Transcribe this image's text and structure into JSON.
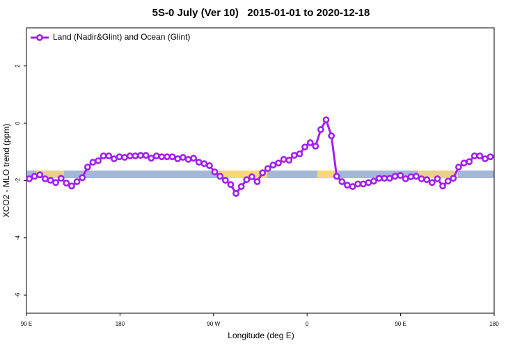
{
  "chart_data": {
    "type": "line",
    "title": "5S-0 July (Ver 10)   2015-01-01 to 2020-12-18",
    "x_label": "Longitude (deg E)",
    "y_label": "XCO2 - MLO trend (ppm)",
    "x": [
      92.7,
      97.8,
      102.9,
      108,
      113.1,
      118.2,
      123.3,
      128.4,
      133.5,
      138.6,
      143.7,
      148.8,
      153.9,
      159,
      164.1,
      169.2,
      174.3,
      179.4,
      184.5,
      189.6,
      194.7,
      199.8,
      204.9,
      210,
      215.1,
      220.2,
      225.3,
      230.4,
      235.5,
      240.6,
      245.7,
      250.8,
      255.9,
      261,
      266.1,
      271.2,
      276.3,
      281.4,
      286.5,
      291.6,
      296.7,
      301.8,
      306.9,
      312,
      317.1,
      322.2,
      327.3,
      332.4,
      337.5,
      342.6,
      347.7,
      352.8,
      357.9,
      363,
      368.1,
      373.2,
      378.3,
      383.4,
      388.5,
      393.6,
      398.7,
      403.8,
      408.9,
      414,
      419.1,
      424.2,
      429.3,
      434.4,
      439.5,
      444.6,
      449.7,
      454.8,
      459.9,
      465,
      470.1,
      475.2,
      480.3,
      485.4,
      490.5,
      495.6,
      500.7,
      505.8,
      510.9,
      516,
      521.1,
      526.2,
      531.3,
      536.4
    ],
    "series": [
      {
        "name": "Land (Nadir&Glint) and Ocean (Glint)",
        "color": "#a020f0",
        "values": [
          -1.94,
          -1.85,
          -1.8,
          -1.94,
          -1.99,
          -2.07,
          -1.92,
          -2.09,
          -2.19,
          -2.04,
          -1.9,
          -1.53,
          -1.36,
          -1.31,
          -1.14,
          -1.14,
          -1.24,
          -1.17,
          -1.19,
          -1.14,
          -1.14,
          -1.12,
          -1.12,
          -1.22,
          -1.14,
          -1.17,
          -1.17,
          -1.17,
          -1.24,
          -1.19,
          -1.26,
          -1.22,
          -1.36,
          -1.41,
          -1.48,
          -1.7,
          -1.85,
          -1.99,
          -2.14,
          -2.45,
          -2.21,
          -1.97,
          -1.87,
          -2.04,
          -1.73,
          -1.58,
          -1.46,
          -1.39,
          -1.26,
          -1.29,
          -1.12,
          -1.07,
          -0.83,
          -0.68,
          -0.8,
          -0.22,
          0.12,
          -0.44,
          -1.85,
          -2.04,
          -2.16,
          -2.21,
          -2.12,
          -2.12,
          -2.07,
          -2.02,
          -1.92,
          -1.92,
          -1.92,
          -1.85,
          -1.82,
          -1.94,
          -1.87,
          -1.85,
          -1.94,
          -1.97,
          -2.07,
          -1.94,
          -2.19,
          -2.02,
          -1.92,
          -1.53,
          -1.39,
          -1.34,
          -1.14,
          -1.14,
          -1.24,
          -1.17
        ]
      }
    ],
    "xlim": [
      90,
      540
    ],
    "xticks": [
      {
        "value": 90,
        "label": "90 E"
      },
      180,
      {
        "value": 270,
        "label": "90 W"
      },
      {
        "value": 360,
        "label": "0"
      },
      {
        "value": 450,
        "label": "90 E"
      },
      {
        "value": 540,
        "label": "180"
      }
    ],
    "ylim": [
      -6.63,
      3.33
    ],
    "yticks": [
      -6,
      -4,
      -2,
      0,
      2
    ],
    "legend": "top-left"
  }
}
